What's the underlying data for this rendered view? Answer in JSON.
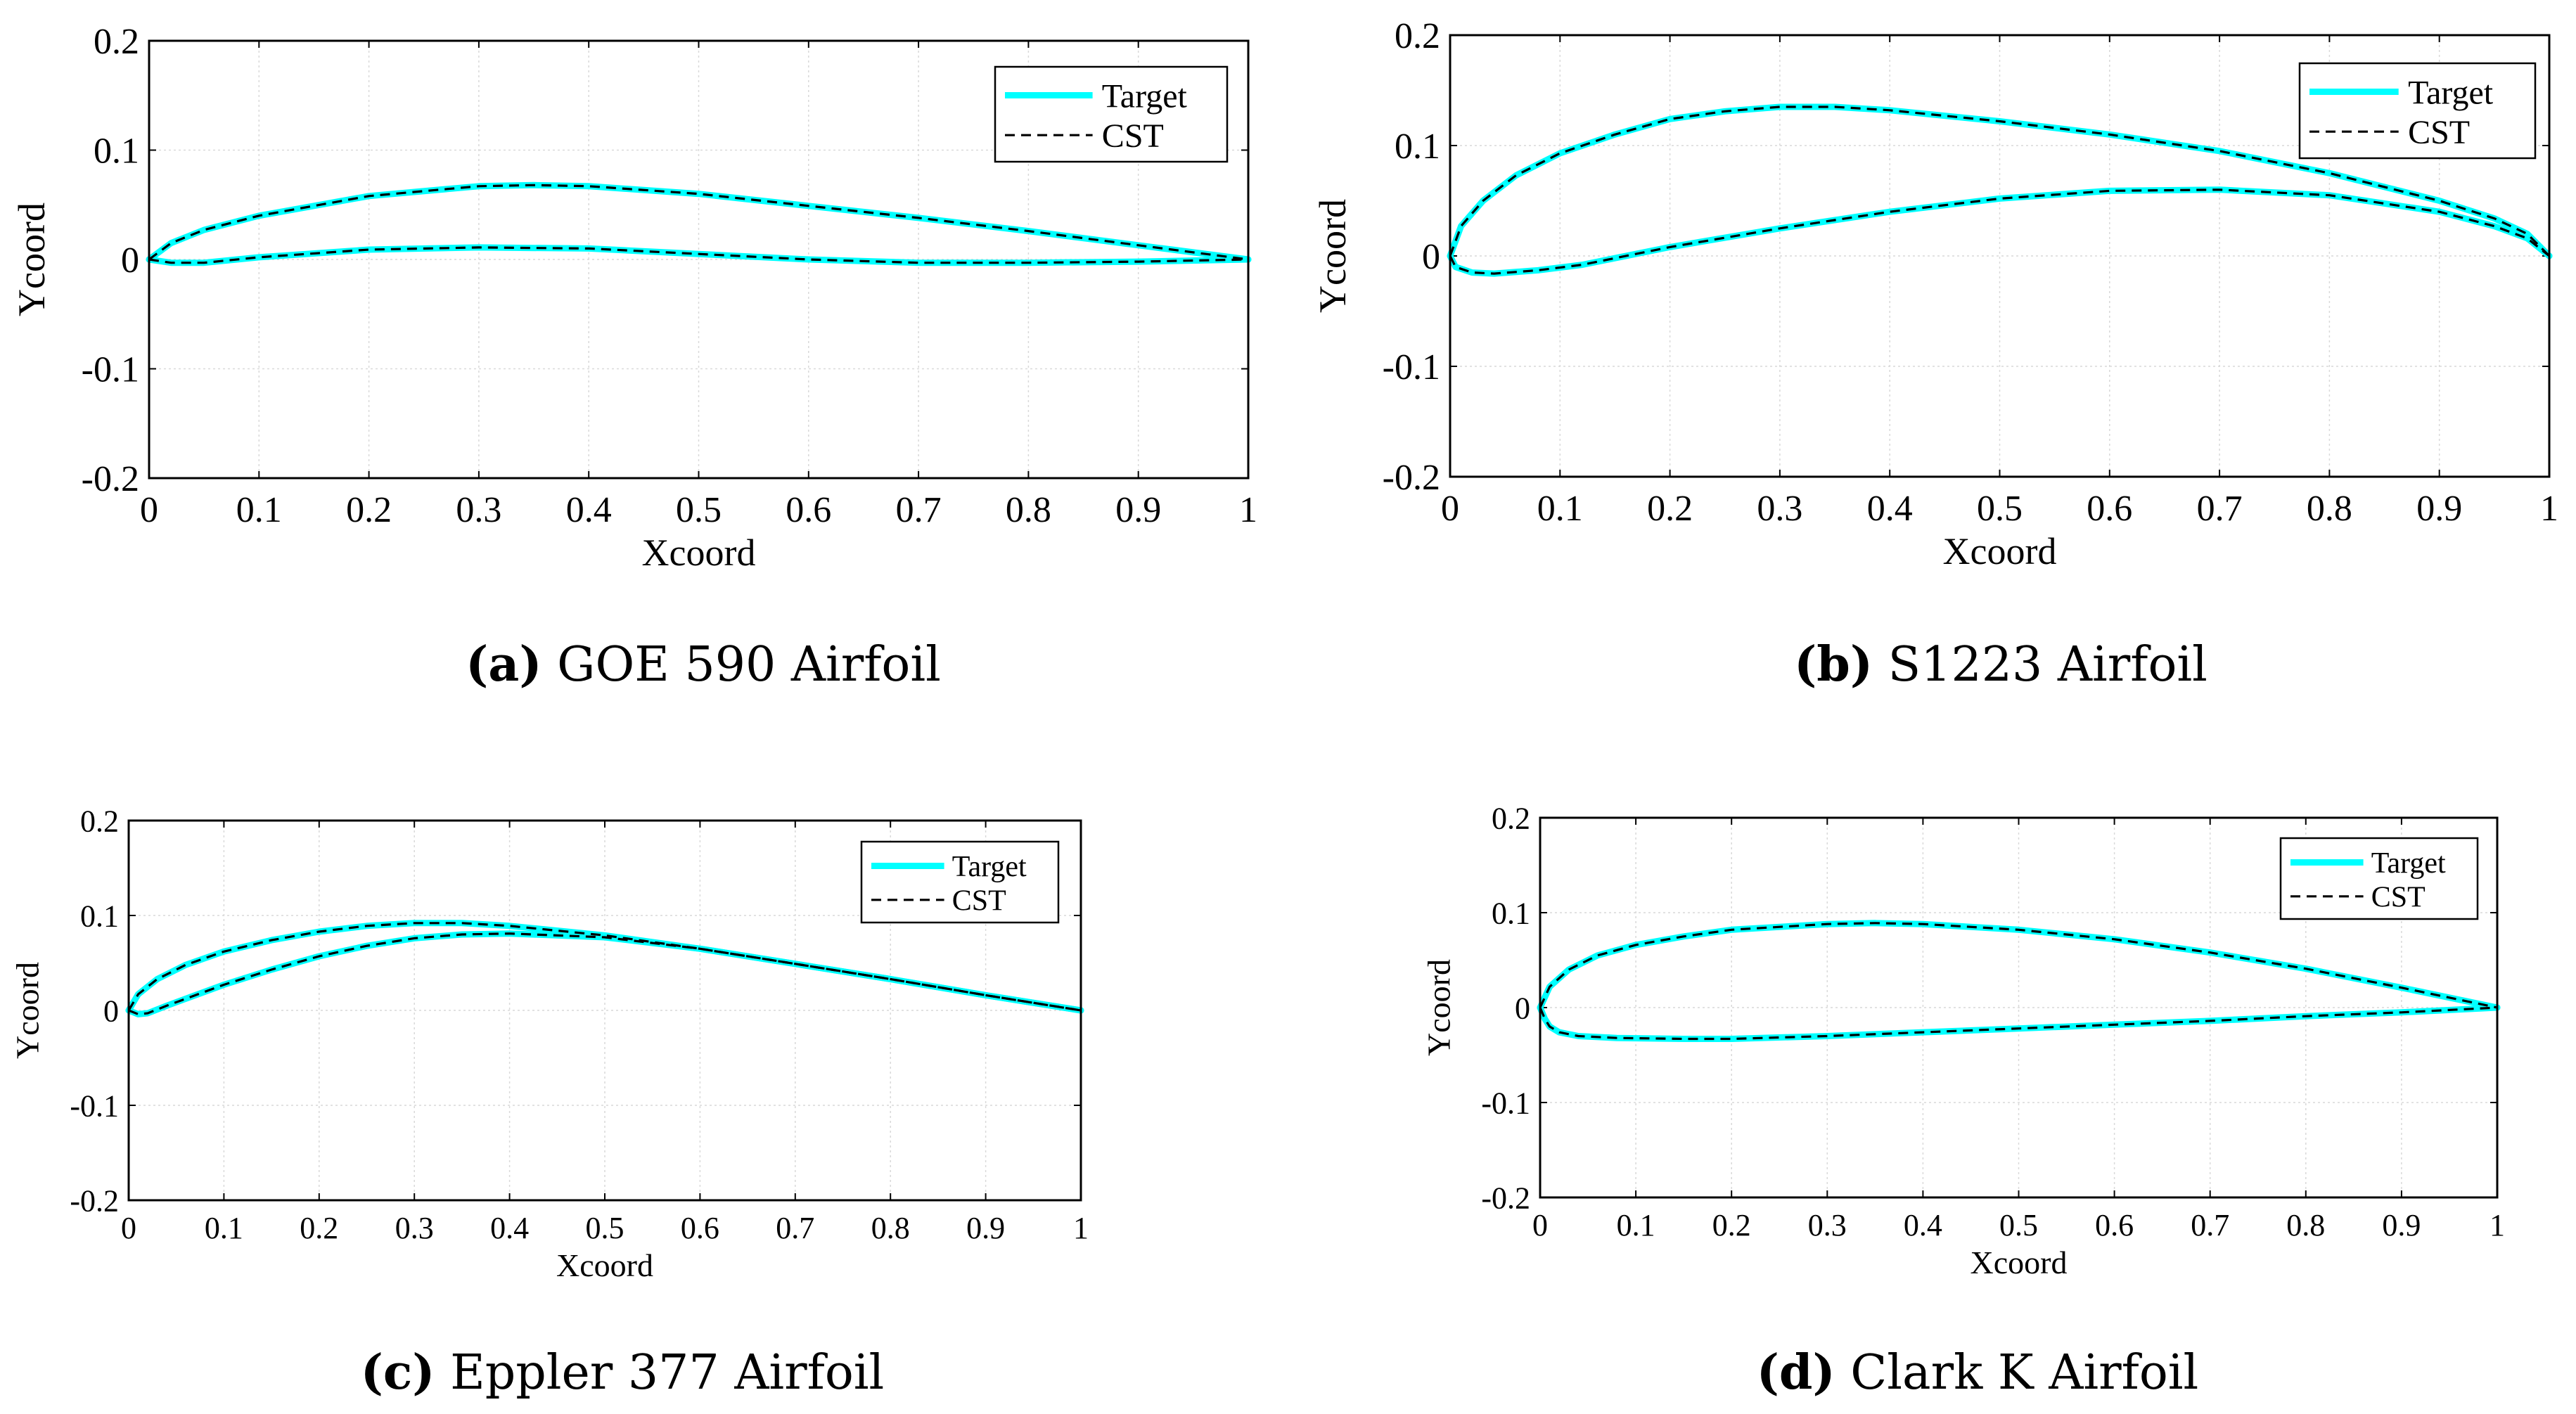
{
  "chart_data": [
    {
      "id": "a",
      "type": "line",
      "caption_letter": "(a)",
      "caption_text": "GOE 590 Airfoil",
      "xlabel": "Xcoord",
      "ylabel": "Ycoord",
      "xlim": [
        0,
        1
      ],
      "ylim": [
        -0.2,
        0.2
      ],
      "xticks": [
        "0",
        "0.1",
        "0.2",
        "0.3",
        "0.4",
        "0.5",
        "0.6",
        "0.7",
        "0.8",
        "0.9",
        "1"
      ],
      "yticks": [
        "-0.2",
        "-0.1",
        "0",
        "0.1",
        "0.2"
      ],
      "grid": true,
      "legend": {
        "placement": "top-right",
        "entries": [
          "Target",
          "CST"
        ]
      },
      "series": [
        {
          "name": "Target",
          "color": "#00FFFF",
          "style": "solid",
          "upper": {
            "x": [
              0,
              0.02,
              0.05,
              0.1,
              0.2,
              0.3,
              0.35,
              0.4,
              0.5,
              0.6,
              0.7,
              0.8,
              0.9,
              1.0
            ],
            "y": [
              0,
              0.015,
              0.027,
              0.04,
              0.058,
              0.067,
              0.068,
              0.067,
              0.06,
              0.049,
              0.038,
              0.026,
              0.013,
              0
            ]
          },
          "lower": {
            "x": [
              0,
              0.02,
              0.05,
              0.1,
              0.2,
              0.3,
              0.4,
              0.5,
              0.6,
              0.7,
              0.8,
              0.9,
              1.0
            ],
            "y": [
              0,
              -0.003,
              -0.003,
              0.002,
              0.009,
              0.011,
              0.01,
              0.005,
              0.0,
              -0.003,
              -0.003,
              -0.002,
              0
            ]
          }
        },
        {
          "name": "CST",
          "color": "#000000",
          "style": "dashed",
          "upper": {
            "x": [
              0,
              0.02,
              0.05,
              0.1,
              0.2,
              0.3,
              0.35,
              0.4,
              0.5,
              0.6,
              0.7,
              0.8,
              0.9,
              1.0
            ],
            "y": [
              0,
              0.015,
              0.027,
              0.04,
              0.058,
              0.067,
              0.068,
              0.067,
              0.06,
              0.049,
              0.038,
              0.026,
              0.013,
              0
            ]
          },
          "lower": {
            "x": [
              0,
              0.02,
              0.05,
              0.1,
              0.2,
              0.3,
              0.4,
              0.5,
              0.6,
              0.7,
              0.8,
              0.9,
              1.0
            ],
            "y": [
              0,
              -0.003,
              -0.003,
              0.002,
              0.009,
              0.011,
              0.01,
              0.005,
              0.0,
              -0.003,
              -0.003,
              -0.002,
              0
            ]
          }
        }
      ]
    },
    {
      "id": "b",
      "type": "line",
      "caption_letter": "(b)",
      "caption_text": "S1223 Airfoil",
      "xlabel": "Xcoord",
      "ylabel": "Ycoord",
      "xlim": [
        0,
        1
      ],
      "ylim": [
        -0.2,
        0.2
      ],
      "xticks": [
        "0",
        "0.1",
        "0.2",
        "0.3",
        "0.4",
        "0.5",
        "0.6",
        "0.7",
        "0.8",
        "0.9",
        "1"
      ],
      "yticks": [
        "-0.2",
        "-0.1",
        "0",
        "0.1",
        "0.2"
      ],
      "grid": true,
      "legend": {
        "placement": "top-right",
        "entries": [
          "Target",
          "CST"
        ]
      },
      "series": [
        {
          "name": "Target",
          "color": "#00FFFF",
          "style": "solid",
          "upper": {
            "x": [
              0,
              0.01,
              0.03,
              0.06,
              0.1,
              0.15,
              0.2,
              0.25,
              0.3,
              0.35,
              0.4,
              0.5,
              0.6,
              0.7,
              0.8,
              0.9,
              0.95,
              0.98,
              1.0
            ],
            "y": [
              0,
              0.027,
              0.05,
              0.073,
              0.093,
              0.11,
              0.124,
              0.131,
              0.135,
              0.135,
              0.132,
              0.122,
              0.11,
              0.095,
              0.075,
              0.05,
              0.034,
              0.02,
              0
            ]
          },
          "lower": {
            "x": [
              0,
              0.005,
              0.02,
              0.04,
              0.08,
              0.12,
              0.2,
              0.3,
              0.4,
              0.5,
              0.6,
              0.7,
              0.8,
              0.9,
              0.95,
              0.98,
              1.0
            ],
            "y": [
              0,
              -0.01,
              -0.015,
              -0.016,
              -0.013,
              -0.008,
              0.008,
              0.025,
              0.04,
              0.052,
              0.059,
              0.06,
              0.055,
              0.04,
              0.027,
              0.016,
              0
            ]
          }
        },
        {
          "name": "CST",
          "color": "#000000",
          "style": "dashed",
          "upper": {
            "x": [
              0,
              0.01,
              0.03,
              0.06,
              0.1,
              0.15,
              0.2,
              0.25,
              0.3,
              0.35,
              0.4,
              0.5,
              0.6,
              0.7,
              0.8,
              0.9,
              0.95,
              0.98,
              1.0
            ],
            "y": [
              0,
              0.027,
              0.05,
              0.073,
              0.093,
              0.11,
              0.124,
              0.131,
              0.135,
              0.135,
              0.132,
              0.122,
              0.11,
              0.095,
              0.075,
              0.05,
              0.034,
              0.02,
              0
            ]
          },
          "lower": {
            "x": [
              0,
              0.005,
              0.02,
              0.04,
              0.08,
              0.12,
              0.2,
              0.3,
              0.4,
              0.5,
              0.6,
              0.7,
              0.8,
              0.9,
              0.95,
              0.98,
              1.0
            ],
            "y": [
              0,
              -0.01,
              -0.015,
              -0.016,
              -0.013,
              -0.008,
              0.008,
              0.025,
              0.04,
              0.052,
              0.059,
              0.06,
              0.055,
              0.04,
              0.027,
              0.016,
              0
            ]
          }
        }
      ]
    },
    {
      "id": "c",
      "type": "line",
      "caption_letter": "(c)",
      "caption_text": "Eppler 377 Airfoil",
      "xlabel": "Xcoord",
      "ylabel": "Ycoord",
      "xlim": [
        0,
        1
      ],
      "ylim": [
        -0.2,
        0.2
      ],
      "xticks": [
        "0",
        "0.1",
        "0.2",
        "0.3",
        "0.4",
        "0.5",
        "0.6",
        "0.7",
        "0.8",
        "0.9",
        "1"
      ],
      "yticks": [
        "-0.2",
        "-0.1",
        "0",
        "0.1",
        "0.2"
      ],
      "grid": true,
      "legend": {
        "placement": "top-right",
        "entries": [
          "Target",
          "CST"
        ]
      },
      "series": [
        {
          "name": "Target",
          "color": "#00FFFF",
          "style": "solid",
          "upper": {
            "x": [
              0,
              0.01,
              0.03,
              0.06,
              0.1,
              0.15,
              0.2,
              0.25,
              0.3,
              0.35,
              0.4,
              0.5,
              0.6,
              0.7,
              0.8,
              0.9,
              1.0
            ],
            "y": [
              0,
              0.017,
              0.033,
              0.048,
              0.062,
              0.074,
              0.083,
              0.089,
              0.092,
              0.092,
              0.089,
              0.079,
              0.065,
              0.049,
              0.033,
              0.016,
              0
            ]
          },
          "lower": {
            "x": [
              0,
              0.01,
              0.02,
              0.04,
              0.07,
              0.1,
              0.15,
              0.2,
              0.25,
              0.3,
              0.35,
              0.4,
              0.5,
              0.6,
              0.7,
              0.8,
              0.9,
              1.0
            ],
            "y": [
              0,
              -0.004,
              -0.003,
              0.005,
              0.016,
              0.027,
              0.043,
              0.057,
              0.068,
              0.076,
              0.08,
              0.081,
              0.077,
              0.065,
              0.049,
              0.033,
              0.016,
              0
            ]
          }
        },
        {
          "name": "CST",
          "color": "#000000",
          "style": "dashed",
          "upper": {
            "x": [
              0,
              0.01,
              0.03,
              0.06,
              0.1,
              0.15,
              0.2,
              0.25,
              0.3,
              0.35,
              0.4,
              0.5,
              0.6,
              0.7,
              0.8,
              0.9,
              1.0
            ],
            "y": [
              0,
              0.017,
              0.033,
              0.048,
              0.062,
              0.074,
              0.083,
              0.089,
              0.092,
              0.092,
              0.089,
              0.079,
              0.065,
              0.049,
              0.033,
              0.016,
              0
            ]
          },
          "lower": {
            "x": [
              0,
              0.01,
              0.02,
              0.04,
              0.07,
              0.1,
              0.15,
              0.2,
              0.25,
              0.3,
              0.35,
              0.4,
              0.5,
              0.6,
              0.7,
              0.8,
              0.9,
              1.0
            ],
            "y": [
              0,
              -0.004,
              -0.003,
              0.005,
              0.016,
              0.027,
              0.043,
              0.057,
              0.068,
              0.076,
              0.08,
              0.081,
              0.077,
              0.065,
              0.049,
              0.033,
              0.016,
              0
            ]
          }
        }
      ]
    },
    {
      "id": "d",
      "type": "line",
      "caption_letter": "(d)",
      "caption_text": "Clark K Airfoil",
      "xlabel": "Xcoord",
      "ylabel": "Ycoord",
      "xlim": [
        0,
        1
      ],
      "ylim": [
        -0.2,
        0.2
      ],
      "xticks": [
        "0",
        "0.1",
        "0.2",
        "0.3",
        "0.4",
        "0.5",
        "0.6",
        "0.7",
        "0.8",
        "0.9",
        "1"
      ],
      "yticks": [
        "-0.2",
        "-0.1",
        "0",
        "0.1",
        "0.2"
      ],
      "grid": true,
      "legend": {
        "placement": "top-right",
        "entries": [
          "Target",
          "CST"
        ]
      },
      "series": [
        {
          "name": "Target",
          "color": "#00FFFF",
          "style": "solid",
          "upper": {
            "x": [
              0,
              0.01,
              0.03,
              0.06,
              0.1,
              0.15,
              0.2,
              0.3,
              0.35,
              0.4,
              0.5,
              0.6,
              0.7,
              0.8,
              0.9,
              1.0
            ],
            "y": [
              0,
              0.022,
              0.04,
              0.055,
              0.066,
              0.075,
              0.082,
              0.088,
              0.089,
              0.088,
              0.082,
              0.072,
              0.058,
              0.041,
              0.021,
              0
            ]
          },
          "lower": {
            "x": [
              0,
              0.005,
              0.01,
              0.02,
              0.04,
              0.08,
              0.15,
              0.2,
              0.3,
              0.4,
              0.5,
              0.6,
              0.7,
              0.8,
              0.9,
              1.0
            ],
            "y": [
              0,
              -0.012,
              -0.02,
              -0.026,
              -0.03,
              -0.032,
              -0.033,
              -0.033,
              -0.03,
              -0.026,
              -0.022,
              -0.018,
              -0.014,
              -0.009,
              -0.005,
              0
            ]
          }
        },
        {
          "name": "CST",
          "color": "#000000",
          "style": "dashed",
          "upper": {
            "x": [
              0,
              0.01,
              0.03,
              0.06,
              0.1,
              0.15,
              0.2,
              0.3,
              0.35,
              0.4,
              0.5,
              0.6,
              0.7,
              0.8,
              0.9,
              1.0
            ],
            "y": [
              0,
              0.022,
              0.04,
              0.055,
              0.066,
              0.075,
              0.082,
              0.088,
              0.089,
              0.088,
              0.082,
              0.072,
              0.058,
              0.041,
              0.021,
              0
            ]
          },
          "lower": {
            "x": [
              0,
              0.005,
              0.01,
              0.02,
              0.04,
              0.08,
              0.15,
              0.2,
              0.3,
              0.4,
              0.5,
              0.6,
              0.7,
              0.8,
              0.9,
              1.0
            ],
            "y": [
              0,
              -0.012,
              -0.02,
              -0.026,
              -0.03,
              -0.032,
              -0.033,
              -0.033,
              -0.03,
              -0.026,
              -0.022,
              -0.018,
              -0.014,
              -0.009,
              -0.005,
              0
            ]
          }
        }
      ]
    }
  ]
}
